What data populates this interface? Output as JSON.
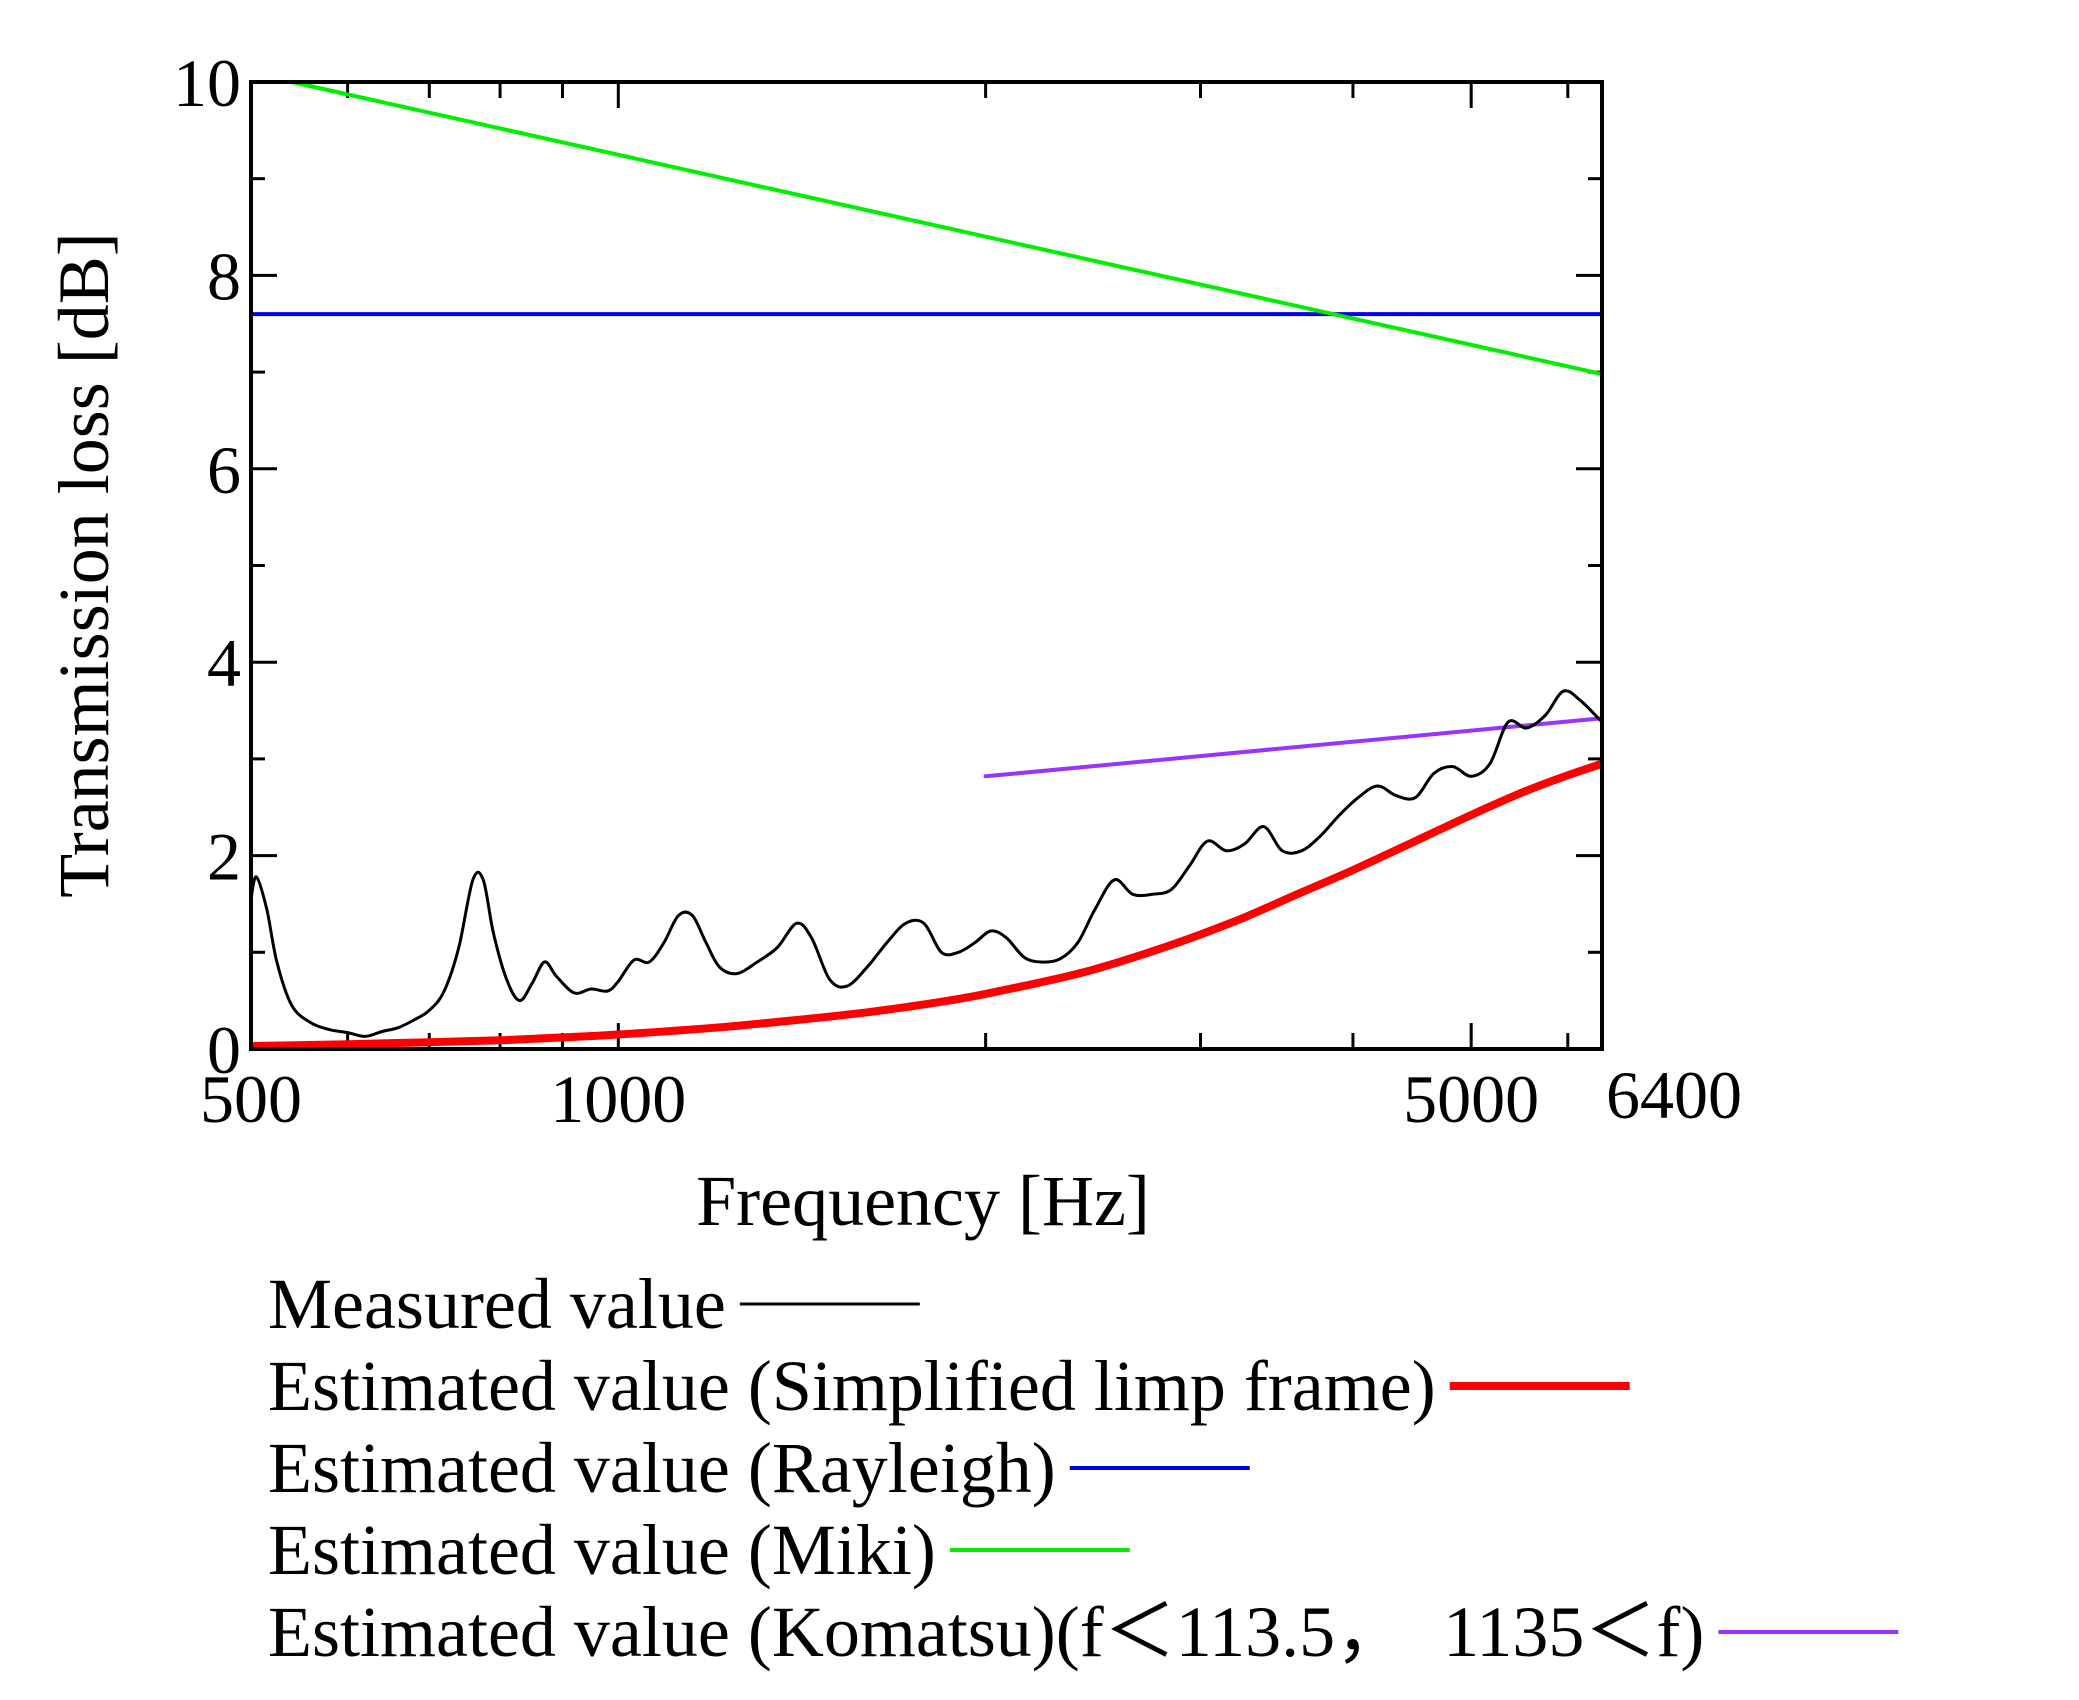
{
  "chart_data": {
    "type": "line",
    "xscale": "log",
    "xlabel": "Frequency [Hz]",
    "ylabel": "Transmission loss [dB]",
    "xlim": [
      500,
      6400
    ],
    "ylim": [
      0,
      10
    ],
    "xticks": [
      {
        "value": 500,
        "label": "500"
      },
      {
        "value": 1000,
        "label": "1000"
      },
      {
        "value": 5000,
        "label": "5000"
      },
      {
        "value": 6400,
        "label": "6400"
      }
    ],
    "yticks": [
      {
        "value": 0,
        "label": "0"
      },
      {
        "value": 2,
        "label": "2"
      },
      {
        "value": 4,
        "label": "4"
      },
      {
        "value": 6,
        "label": "6"
      },
      {
        "value": 8,
        "label": "8"
      },
      {
        "value": 10,
        "label": "10"
      }
    ],
    "series": [
      {
        "name": "Measured value",
        "color": "#000000",
        "width": 3,
        "x": [
          500,
          505,
          515,
          525,
          540,
          560,
          580,
          600,
          620,
          640,
          660,
          680,
          700,
          720,
          740,
          760,
          775,
          790,
          810,
          830,
          850,
          870,
          890,
          920,
          950,
          980,
          1000,
          1030,
          1060,
          1090,
          1120,
          1150,
          1180,
          1210,
          1250,
          1300,
          1350,
          1400,
          1440,
          1490,
          1540,
          1600,
          1660,
          1720,
          1780,
          1840,
          1900,
          1960,
          2020,
          2080,
          2150,
          2220,
          2300,
          2380,
          2460,
          2550,
          2640,
          2740,
          2840,
          2940,
          3040,
          3150,
          3260,
          3380,
          3500,
          3630,
          3760,
          3900,
          4040,
          4190,
          4340,
          4500,
          4660,
          4830,
          5000,
          5180,
          5360,
          5550,
          5750,
          5950,
          6150,
          6400
        ],
        "y": [
          1.55,
          1.78,
          1.45,
          0.9,
          0.45,
          0.27,
          0.2,
          0.17,
          0.13,
          0.18,
          0.22,
          0.3,
          0.4,
          0.6,
          1.05,
          1.75,
          1.75,
          1.2,
          0.72,
          0.5,
          0.68,
          0.9,
          0.75,
          0.58,
          0.62,
          0.6,
          0.7,
          0.92,
          0.9,
          1.1,
          1.38,
          1.38,
          1.1,
          0.85,
          0.78,
          0.9,
          1.05,
          1.3,
          1.15,
          0.72,
          0.65,
          0.85,
          1.1,
          1.3,
          1.3,
          1.0,
          1.0,
          1.1,
          1.22,
          1.15,
          0.95,
          0.9,
          0.93,
          1.1,
          1.45,
          1.75,
          1.6,
          1.6,
          1.65,
          1.9,
          2.15,
          2.05,
          2.12,
          2.3,
          2.05,
          2.05,
          2.2,
          2.42,
          2.6,
          2.72,
          2.62,
          2.6,
          2.85,
          2.92,
          2.82,
          2.95,
          3.38,
          3.32,
          3.45,
          3.7,
          3.6,
          3.38
        ]
      },
      {
        "name": "Estimated value (Simplified limp frame)",
        "color": "#ff0000",
        "width": 8,
        "x": [
          500,
          600,
          700,
          800,
          900,
          1000,
          1200,
          1400,
          1600,
          1800,
          2000,
          2400,
          2800,
          3200,
          3600,
          4000,
          4500,
          5000,
          5500,
          6000,
          6400
        ],
        "y": [
          0.03,
          0.05,
          0.07,
          0.09,
          0.12,
          0.15,
          0.22,
          0.3,
          0.38,
          0.47,
          0.57,
          0.79,
          1.05,
          1.32,
          1.6,
          1.85,
          2.15,
          2.42,
          2.65,
          2.83,
          2.95
        ]
      },
      {
        "name": "Estimated value (Rayleigh)",
        "color": "#0000ee",
        "width": 4,
        "x": [
          500,
          6400
        ],
        "y": [
          7.6,
          7.6
        ]
      },
      {
        "name": "Estimated value (Miki)",
        "color": "#00ee00",
        "width": 4,
        "x": [
          540,
          6400
        ],
        "y": [
          10.0,
          6.98
        ]
      },
      {
        "name": "Estimated value (Komatsu)(f＜113.5，　1135＜f)",
        "color": "#9933ff",
        "width": 4,
        "x": [
          2000,
          6400
        ],
        "y": [
          2.82,
          3.42
        ]
      }
    ],
    "legend_position": "below"
  }
}
